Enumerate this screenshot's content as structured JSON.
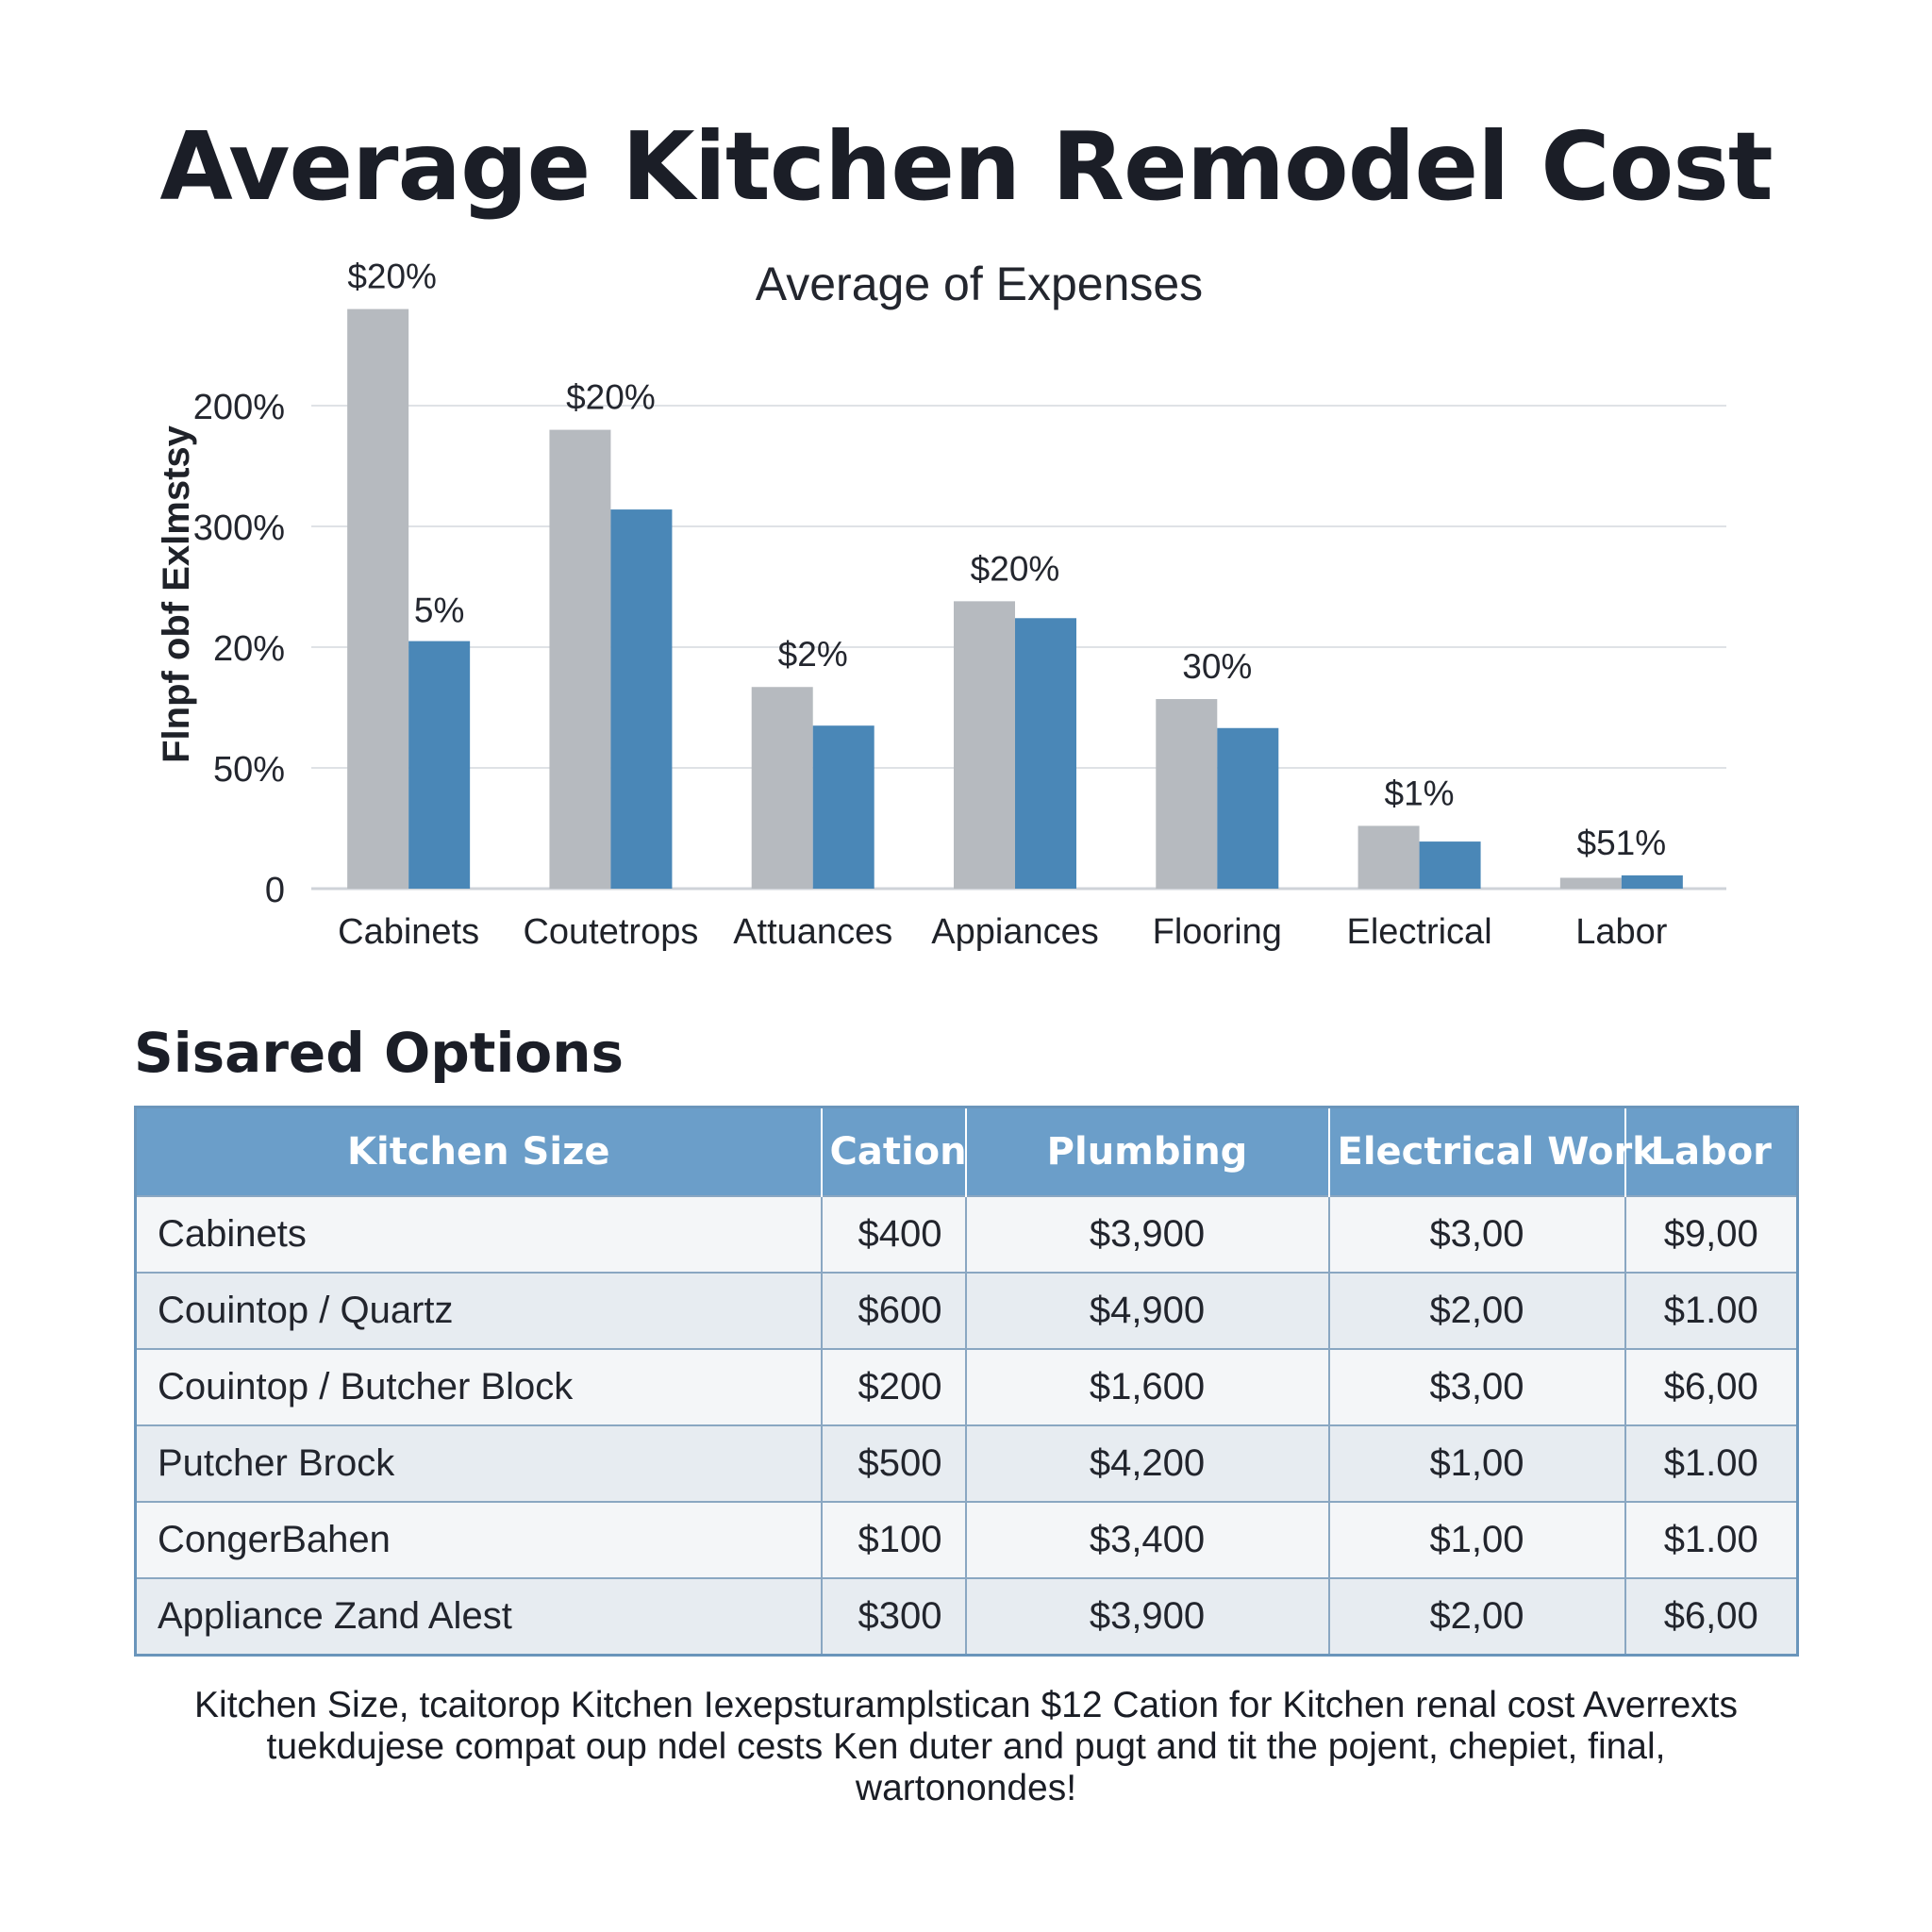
{
  "title": "Average Kitchen Remodel Cost",
  "chart_data": {
    "type": "bar",
    "title": "Average Kitchen Remodel Cost",
    "subtitle": "Average of Expenses",
    "xlabel": "",
    "ylabel": "Flnpf obf Exlmstsy",
    "y_tick_labels": [
      "0",
      "50%",
      "20%",
      "300%",
      "200%"
    ],
    "y_tick_values": [
      0,
      1,
      2,
      3,
      4
    ],
    "ylim": [
      0,
      4.9
    ],
    "grid": true,
    "legend": "none",
    "categories": [
      "Cabinets",
      "Coutetrops",
      "Attuances",
      "Appiances",
      "Flooring",
      "Electrical",
      "Labor"
    ],
    "series": [
      {
        "values": [
          4.8,
          3.8,
          1.67,
          2.38,
          1.57,
          0.52,
          0.09
        ],
        "color": "#b6babf"
      },
      {
        "values": [
          2.05,
          3.14,
          1.35,
          2.24,
          1.33,
          0.39,
          0.11
        ],
        "color": "#4a87b7"
      }
    ],
    "data_labels": [
      "$20%",
      "$20%",
      "$2%",
      "$20%",
      "30%",
      "$1%",
      "$51%"
    ],
    "secondary_labels": [
      {
        "category_index": 0,
        "text": "5%"
      }
    ]
  },
  "section_title": "Sisared Options",
  "table": {
    "headers": [
      "Kitchen Size",
      "Cation",
      "Plumbing",
      "Electrical Work",
      "Labor"
    ],
    "rows": [
      [
        "Cabinets",
        "$400",
        "$3,900",
        "$3,00",
        "$9,00"
      ],
      [
        "Couintop / Quartz",
        "$600",
        "$4,900",
        "$2,00",
        "$1.00"
      ],
      [
        "Couintop / Butcher Block",
        "$200",
        "$1,600",
        "$3,00",
        "$6,00"
      ],
      [
        "Putcher Brock",
        "$500",
        "$4,200",
        "$1,00",
        "$1.00"
      ],
      [
        "CongerBahen",
        "$100",
        "$3,400",
        "$1,00",
        "$1.00"
      ],
      [
        "Appliance Zand Alest",
        "$300",
        "$3,900",
        "$2,00",
        "$6,00"
      ]
    ]
  },
  "footnote": "Kitchen Size, tcaitorop Kitchen Iexepsturamplstican $12 Cation for Kitchen renal cost Averrexts tuekdujese compat oup ndel cests Ken duter and pugt and tit the pojent, chepiet, final, wartonondes!"
}
